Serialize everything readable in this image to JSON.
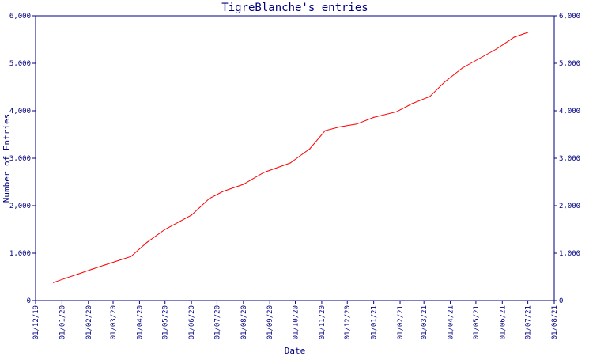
{
  "chart_data": {
    "type": "line",
    "title": "TigreBlanche's entries",
    "xlabel": "Date",
    "ylabel": "Number of Entries",
    "ylim": [
      0,
      6000
    ],
    "y_ticks": [
      "0",
      "1,000",
      "2,000",
      "3,000",
      "4,000",
      "5,000",
      "6,000"
    ],
    "x_ticks": [
      "01/12/19",
      "01/01/20",
      "01/02/20",
      "01/03/20",
      "01/04/20",
      "01/05/20",
      "01/06/20",
      "01/07/20",
      "01/08/20",
      "01/09/20",
      "01/10/20",
      "01/11/20",
      "01/12/20",
      "01/01/21",
      "01/02/21",
      "01/03/21",
      "01/04/21",
      "01/05/21",
      "01/06/21",
      "01/07/21",
      "01/08/21"
    ],
    "grid": false,
    "colors": {
      "axis": "#000080",
      "line": "#ff0000",
      "text": "#000080"
    },
    "series": [
      {
        "x": [
          "2019-12-22",
          "2020-01-05",
          "2020-01-20",
          "2020-02-05",
          "2020-02-20",
          "2020-03-10",
          "2020-03-22",
          "2020-04-10",
          "2020-05-01",
          "2020-06-01",
          "2020-06-22",
          "2020-07-08",
          "2020-08-01",
          "2020-08-25",
          "2020-09-25",
          "2020-10-18",
          "2020-11-05",
          "2020-11-22",
          "2020-12-12",
          "2021-01-01",
          "2021-01-28",
          "2021-02-15",
          "2021-03-08",
          "2021-03-25",
          "2021-04-15",
          "2021-05-05",
          "2021-05-25",
          "2021-06-15",
          "2021-07-01"
        ],
        "values": [
          380,
          470,
          560,
          660,
          750,
          860,
          930,
          1230,
          1500,
          1800,
          2150,
          2300,
          2450,
          2700,
          2900,
          3200,
          3580,
          3660,
          3720,
          3860,
          3980,
          4150,
          4300,
          4600,
          4900,
          5100,
          5300,
          5550,
          5650
        ]
      }
    ]
  }
}
